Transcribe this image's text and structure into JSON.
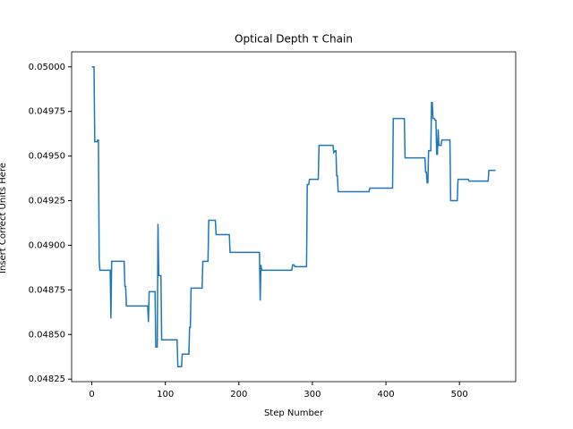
{
  "chart_data": {
    "type": "line",
    "title": "Optical Depth τ Chain",
    "x_label": "Step Number",
    "y_label": "Insert Correct Units Here",
    "x": [
      0,
      3,
      4,
      7,
      8,
      9,
      10,
      11,
      24,
      25,
      26,
      27,
      44,
      45,
      46,
      47,
      76,
      77,
      78,
      86,
      87,
      89,
      90,
      91,
      93,
      94,
      95,
      116,
      117,
      122,
      123,
      132,
      133,
      134,
      135,
      150,
      151,
      158,
      159,
      168,
      169,
      187,
      188,
      228,
      229,
      230,
      231,
      232,
      272,
      273,
      275,
      276,
      292,
      293,
      295,
      296,
      308,
      309,
      328,
      329,
      331,
      332,
      333,
      334,
      335,
      377,
      378,
      395,
      396,
      409,
      410,
      425,
      426,
      453,
      454,
      455,
      456,
      457,
      458,
      461,
      462,
      463,
      464,
      466,
      467,
      468,
      469,
      470,
      471,
      472,
      475,
      476,
      487,
      488,
      497,
      498,
      512,
      513,
      539,
      540,
      549
    ],
    "series": [
      {
        "name": "tau",
        "color": "#1f77b4",
        "values": [
          0.05,
          0.05,
          0.04958,
          0.04958,
          0.04959,
          0.04959,
          0.04892,
          0.04886,
          0.04886,
          0.04886,
          0.04859,
          0.04891,
          0.04891,
          0.04877,
          0.04877,
          0.04866,
          0.04866,
          0.04857,
          0.04874,
          0.04874,
          0.04843,
          0.04843,
          0.04912,
          0.04883,
          0.04883,
          0.04883,
          0.04847,
          0.04847,
          0.04832,
          0.04832,
          0.04839,
          0.04839,
          0.04854,
          0.04854,
          0.04876,
          0.04876,
          0.04891,
          0.04891,
          0.04914,
          0.04914,
          0.04906,
          0.04906,
          0.04896,
          0.04896,
          0.04869,
          0.04889,
          0.04886,
          0.04886,
          0.04886,
          0.04889,
          0.04889,
          0.04888,
          0.04888,
          0.04934,
          0.04934,
          0.04937,
          0.04937,
          0.04956,
          0.04956,
          0.04952,
          0.04953,
          0.04953,
          0.04939,
          0.04939,
          0.0493,
          0.0493,
          0.04932,
          0.04932,
          0.04932,
          0.04932,
          0.04971,
          0.04971,
          0.04949,
          0.04949,
          0.04941,
          0.04941,
          0.04935,
          0.04935,
          0.04953,
          0.04953,
          0.0498,
          0.0498,
          0.04971,
          0.04971,
          0.0497,
          0.0497,
          0.04951,
          0.04951,
          0.04965,
          0.04956,
          0.04956,
          0.04959,
          0.04959,
          0.04925,
          0.04925,
          0.04937,
          0.04937,
          0.04936,
          0.04936,
          0.04942,
          0.04942
        ]
      }
    ],
    "xlim": [
      -27.45,
      576.45
    ],
    "xticks": [
      0,
      100,
      200,
      300,
      400,
      500
    ],
    "ylim": [
      0.048236,
      0.050084
    ],
    "yticks": [
      0.04825,
      {
        "value": 0.0485,
        "label": "0.04850"
      },
      0.04875,
      {
        "value": 0.049,
        "label": "0.04900"
      },
      0.04925,
      {
        "value": 0.0495,
        "label": "0.04950"
      },
      0.04975,
      {
        "value": 0.05,
        "label": "0.05000"
      }
    ],
    "grid": false
  }
}
